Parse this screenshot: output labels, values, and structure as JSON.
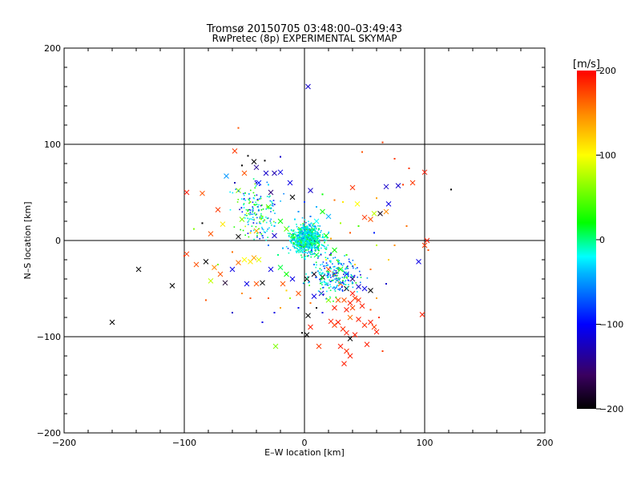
{
  "chart_data": {
    "type": "scatter",
    "title": "Tromsø 20150705 03:48:00–03:49:43",
    "subtitle": "RwPretec (8p) EXPERIMENTAL SKYMAP",
    "xlabel": "E–W location [km]",
    "ylabel": "N–S location [km]",
    "xlim": [
      -200,
      200
    ],
    "ylim": [
      -200,
      200
    ],
    "xticks": [
      -200,
      -100,
      0,
      100,
      200
    ],
    "yticks": [
      -200,
      -100,
      0,
      100,
      200
    ],
    "x_tick_labels": [
      "−200",
      "−100",
      "0",
      "100",
      "200"
    ],
    "y_tick_labels": [
      "−200",
      "−100",
      "0",
      "100",
      "200"
    ],
    "grid": true,
    "colorbar": {
      "label": "[m/s]",
      "range": [
        -200,
        200
      ],
      "ticks": [
        200,
        100,
        0,
        -100,
        -200
      ],
      "tick_labels": [
        "200",
        "100",
        "0",
        "−100",
        "−200"
      ],
      "colors": [
        "#000000",
        "#3a0060",
        "#0000ff",
        "#00b4ff",
        "#00ffff",
        "#00ff00",
        "#ffff00",
        "#ff8c00",
        "#ff0000"
      ]
    },
    "points": [
      {
        "x": 3,
        "y": 160,
        "v": -120,
        "m": "x"
      },
      {
        "x": -55,
        "y": 117,
        "v": 170,
        "m": "d"
      },
      {
        "x": -58,
        "y": 93,
        "v": 180,
        "m": "x"
      },
      {
        "x": -42,
        "y": 82,
        "v": -200,
        "m": "x"
      },
      {
        "x": -40,
        "y": 76,
        "v": -140,
        "m": "x"
      },
      {
        "x": -32,
        "y": 70,
        "v": -120,
        "m": "x"
      },
      {
        "x": -25,
        "y": 70,
        "v": -130,
        "m": "x"
      },
      {
        "x": -20,
        "y": 71,
        "v": -110,
        "m": "x"
      },
      {
        "x": -65,
        "y": 67,
        "v": -50,
        "m": "x"
      },
      {
        "x": -50,
        "y": 70,
        "v": 170,
        "m": "x"
      },
      {
        "x": -38,
        "y": 60,
        "v": -90,
        "m": "x"
      },
      {
        "x": -12,
        "y": 60,
        "v": -110,
        "m": "x"
      },
      {
        "x": -98,
        "y": 50,
        "v": 190,
        "m": "x"
      },
      {
        "x": -85,
        "y": 49,
        "v": 170,
        "m": "x"
      },
      {
        "x": -55,
        "y": 52,
        "v": 60,
        "m": "x"
      },
      {
        "x": -28,
        "y": 50,
        "v": -150,
        "m": "x"
      },
      {
        "x": -10,
        "y": 45,
        "v": -200,
        "m": "x"
      },
      {
        "x": 5,
        "y": 52,
        "v": -120,
        "m": "x"
      },
      {
        "x": 40,
        "y": 55,
        "v": 180,
        "m": "x"
      },
      {
        "x": 68,
        "y": 56,
        "v": -120,
        "m": "x"
      },
      {
        "x": 78,
        "y": 57,
        "v": -120,
        "m": "x"
      },
      {
        "x": 100,
        "y": 71,
        "v": 190,
        "m": "x"
      },
      {
        "x": 90,
        "y": 60,
        "v": 180,
        "m": "x"
      },
      {
        "x": 70,
        "y": 38,
        "v": -110,
        "m": "x"
      },
      {
        "x": 63,
        "y": 28,
        "v": -190,
        "m": "x"
      },
      {
        "x": 58,
        "y": 28,
        "v": 80,
        "m": "x"
      },
      {
        "x": 50,
        "y": 24,
        "v": 180,
        "m": "x"
      },
      {
        "x": 55,
        "y": 22,
        "v": 170,
        "m": "x"
      },
      {
        "x": 68,
        "y": 30,
        "v": 150,
        "m": "x"
      },
      {
        "x": 44,
        "y": 38,
        "v": 100,
        "m": "x"
      },
      {
        "x": -72,
        "y": 32,
        "v": 180,
        "m": "x"
      },
      {
        "x": -68,
        "y": 17,
        "v": 110,
        "m": "x"
      },
      {
        "x": -52,
        "y": 22,
        "v": 60,
        "m": "x"
      },
      {
        "x": -78,
        "y": 7,
        "v": 170,
        "m": "x"
      },
      {
        "x": -55,
        "y": 4,
        "v": -200,
        "m": "x"
      },
      {
        "x": -40,
        "y": 10,
        "v": 140,
        "m": "x"
      },
      {
        "x": -25,
        "y": 5,
        "v": -120,
        "m": "x"
      },
      {
        "x": -30,
        "y": 35,
        "v": 40,
        "m": "x"
      },
      {
        "x": -20,
        "y": 20,
        "v": 20,
        "m": "x"
      },
      {
        "x": 102,
        "y": 0,
        "v": 190,
        "m": "x"
      },
      {
        "x": 100,
        "y": -5,
        "v": 180,
        "m": "x"
      },
      {
        "x": 95,
        "y": -22,
        "v": -110,
        "m": "x"
      },
      {
        "x": 98,
        "y": -77,
        "v": 190,
        "m": "x"
      },
      {
        "x": -138,
        "y": -30,
        "v": -200,
        "m": "x"
      },
      {
        "x": -110,
        "y": -47,
        "v": -200,
        "m": "x"
      },
      {
        "x": -160,
        "y": -85,
        "v": -200,
        "m": "x"
      },
      {
        "x": -98,
        "y": -14,
        "v": 180,
        "m": "x"
      },
      {
        "x": -90,
        "y": -25,
        "v": 170,
        "m": "x"
      },
      {
        "x": -82,
        "y": -22,
        "v": -200,
        "m": "x"
      },
      {
        "x": -75,
        "y": -28,
        "v": 150,
        "m": "x"
      },
      {
        "x": -70,
        "y": -35,
        "v": 170,
        "m": "x"
      },
      {
        "x": -78,
        "y": -42,
        "v": 80,
        "m": "x"
      },
      {
        "x": -66,
        "y": -44,
        "v": -180,
        "m": "x"
      },
      {
        "x": -60,
        "y": -30,
        "v": -110,
        "m": "x"
      },
      {
        "x": -55,
        "y": -23,
        "v": 160,
        "m": "x"
      },
      {
        "x": -50,
        "y": -20,
        "v": 100,
        "m": "x"
      },
      {
        "x": -45,
        "y": -22,
        "v": 110,
        "m": "x"
      },
      {
        "x": -42,
        "y": -18,
        "v": 140,
        "m": "x"
      },
      {
        "x": -38,
        "y": -20,
        "v": 90,
        "m": "x"
      },
      {
        "x": -48,
        "y": -45,
        "v": -110,
        "m": "x"
      },
      {
        "x": -40,
        "y": -45,
        "v": 170,
        "m": "x"
      },
      {
        "x": -35,
        "y": -44,
        "v": -200,
        "m": "x"
      },
      {
        "x": -28,
        "y": -30,
        "v": -110,
        "m": "x"
      },
      {
        "x": -20,
        "y": -28,
        "v": 10,
        "m": "x"
      },
      {
        "x": -15,
        "y": -35,
        "v": 20,
        "m": "x"
      },
      {
        "x": -10,
        "y": -40,
        "v": -110,
        "m": "x"
      },
      {
        "x": -18,
        "y": -45,
        "v": 170,
        "m": "x"
      },
      {
        "x": -24,
        "y": -110,
        "v": 60,
        "m": "x"
      },
      {
        "x": 2,
        "y": -40,
        "v": -200,
        "m": "x"
      },
      {
        "x": 8,
        "y": -35,
        "v": -190,
        "m": "x"
      },
      {
        "x": 15,
        "y": -38,
        "v": -200,
        "m": "x"
      },
      {
        "x": 20,
        "y": -30,
        "v": 170,
        "m": "x"
      },
      {
        "x": 25,
        "y": -35,
        "v": 180,
        "m": "x"
      },
      {
        "x": 30,
        "y": -30,
        "v": 30,
        "m": "x"
      },
      {
        "x": 35,
        "y": -35,
        "v": -110,
        "m": "x"
      },
      {
        "x": 40,
        "y": -40,
        "v": -150,
        "m": "x"
      },
      {
        "x": 45,
        "y": -48,
        "v": -120,
        "m": "x"
      },
      {
        "x": 50,
        "y": -50,
        "v": -110,
        "m": "x"
      },
      {
        "x": 55,
        "y": -52,
        "v": -200,
        "m": "x"
      },
      {
        "x": 30,
        "y": -45,
        "v": 170,
        "m": "x"
      },
      {
        "x": 35,
        "y": -50,
        "v": -200,
        "m": "x"
      },
      {
        "x": 40,
        "y": -55,
        "v": 190,
        "m": "x"
      },
      {
        "x": 42,
        "y": -60,
        "v": 180,
        "m": "x"
      },
      {
        "x": 38,
        "y": -65,
        "v": 190,
        "m": "x"
      },
      {
        "x": 33,
        "y": -62,
        "v": 170,
        "m": "x"
      },
      {
        "x": 45,
        "y": -62,
        "v": 185,
        "m": "x"
      },
      {
        "x": 48,
        "y": -68,
        "v": 190,
        "m": "x"
      },
      {
        "x": 40,
        "y": -70,
        "v": 175,
        "m": "x"
      },
      {
        "x": 35,
        "y": -72,
        "v": 190,
        "m": "x"
      },
      {
        "x": 28,
        "y": -62,
        "v": 170,
        "m": "x"
      },
      {
        "x": 25,
        "y": -70,
        "v": 190,
        "m": "x"
      },
      {
        "x": 38,
        "y": -80,
        "v": 160,
        "m": "x"
      },
      {
        "x": 45,
        "y": -82,
        "v": 190,
        "m": "x"
      },
      {
        "x": 50,
        "y": -88,
        "v": 185,
        "m": "x"
      },
      {
        "x": 55,
        "y": -85,
        "v": 190,
        "m": "x"
      },
      {
        "x": 58,
        "y": -90,
        "v": 180,
        "m": "x"
      },
      {
        "x": 60,
        "y": -95,
        "v": 190,
        "m": "x"
      },
      {
        "x": 22,
        "y": -84,
        "v": 190,
        "m": "x"
      },
      {
        "x": 25,
        "y": -88,
        "v": 180,
        "m": "x"
      },
      {
        "x": 28,
        "y": -85,
        "v": 190,
        "m": "x"
      },
      {
        "x": 32,
        "y": -92,
        "v": 185,
        "m": "x"
      },
      {
        "x": 35,
        "y": -96,
        "v": 190,
        "m": "x"
      },
      {
        "x": 38,
        "y": -102,
        "v": -200,
        "m": "x"
      },
      {
        "x": 42,
        "y": -98,
        "v": 190,
        "m": "x"
      },
      {
        "x": 30,
        "y": -110,
        "v": 190,
        "m": "x"
      },
      {
        "x": 35,
        "y": -115,
        "v": 185,
        "m": "x"
      },
      {
        "x": 38,
        "y": -120,
        "v": 190,
        "m": "x"
      },
      {
        "x": 33,
        "y": -128,
        "v": 190,
        "m": "x"
      },
      {
        "x": 52,
        "y": -108,
        "v": 190,
        "m": "x"
      },
      {
        "x": 12,
        "y": -110,
        "v": 180,
        "m": "x"
      },
      {
        "x": 5,
        "y": -90,
        "v": 190,
        "m": "x"
      },
      {
        "x": 2,
        "y": -98,
        "v": -200,
        "m": "x"
      },
      {
        "x": 3,
        "y": -78,
        "v": -200,
        "m": "x"
      },
      {
        "x": 8,
        "y": -58,
        "v": -110,
        "m": "x"
      },
      {
        "x": 14,
        "y": -55,
        "v": -120,
        "m": "x"
      },
      {
        "x": -5,
        "y": -55,
        "v": 170,
        "m": "x"
      },
      {
        "x": 20,
        "y": -62,
        "v": 60,
        "m": "x"
      },
      {
        "x": 15,
        "y": 30,
        "v": 20,
        "m": "x"
      },
      {
        "x": 20,
        "y": 25,
        "v": -40,
        "m": "x"
      },
      {
        "x": 10,
        "y": 20,
        "v": -20,
        "m": "x"
      },
      {
        "x": 5,
        "y": 10,
        "v": 30,
        "m": "x"
      },
      {
        "x": 18,
        "y": 5,
        "v": 20,
        "m": "x"
      },
      {
        "x": -10,
        "y": 5,
        "v": 40,
        "m": "x"
      },
      {
        "x": -5,
        "y": -10,
        "v": -30,
        "m": "x"
      },
      {
        "x": 10,
        "y": -15,
        "v": 10,
        "m": "x"
      },
      {
        "x": 25,
        "y": -10,
        "v": 20,
        "m": "x"
      },
      {
        "x": -2,
        "y": 2,
        "v": 80,
        "m": "x"
      },
      {
        "x": 5,
        "y": -5,
        "v": 60,
        "m": "x"
      },
      {
        "x": -15,
        "y": 12,
        "v": 50,
        "m": "x"
      },
      {
        "x": 122,
        "y": 53,
        "v": -200,
        "m": "d"
      },
      {
        "x": 103,
        "y": -10,
        "v": 170,
        "m": "d"
      },
      {
        "x": -60,
        "y": -75,
        "v": -120,
        "m": "d"
      },
      {
        "x": -35,
        "y": -85,
        "v": -110,
        "m": "d"
      },
      {
        "x": -2,
        "y": -96,
        "v": -200,
        "m": "d"
      },
      {
        "x": 65,
        "y": -115,
        "v": 180,
        "m": "d"
      },
      {
        "x": 82,
        "y": 58,
        "v": 180,
        "m": "d"
      },
      {
        "x": 87,
        "y": 75,
        "v": 180,
        "m": "d"
      },
      {
        "x": 65,
        "y": 102,
        "v": 180,
        "m": "d"
      },
      {
        "x": 48,
        "y": 92,
        "v": 170,
        "m": "d"
      },
      {
        "x": 75,
        "y": 85,
        "v": 180,
        "m": "d"
      },
      {
        "x": -47,
        "y": 88,
        "v": -200,
        "m": "d"
      },
      {
        "x": -33,
        "y": 83,
        "v": -200,
        "m": "d"
      },
      {
        "x": -20,
        "y": 87,
        "v": -120,
        "m": "d"
      },
      {
        "x": -52,
        "y": 78,
        "v": -200,
        "m": "d"
      },
      {
        "x": -58,
        "y": 60,
        "v": -130,
        "m": "d"
      },
      {
        "x": -45,
        "y": 40,
        "v": 100,
        "m": "d"
      },
      {
        "x": 15,
        "y": 48,
        "v": 20,
        "m": "d"
      },
      {
        "x": 25,
        "y": 42,
        "v": 160,
        "m": "d"
      },
      {
        "x": 32,
        "y": 40,
        "v": 110,
        "m": "d"
      },
      {
        "x": 60,
        "y": 44,
        "v": 140,
        "m": "d"
      },
      {
        "x": -85,
        "y": 18,
        "v": -200,
        "m": "d"
      },
      {
        "x": -92,
        "y": 12,
        "v": 60,
        "m": "d"
      },
      {
        "x": -100,
        "y": -16,
        "v": 180,
        "m": "d"
      },
      {
        "x": -82,
        "y": -62,
        "v": 170,
        "m": "d"
      },
      {
        "x": -72,
        "y": -25,
        "v": 60,
        "m": "d"
      },
      {
        "x": -30,
        "y": -60,
        "v": 170,
        "m": "d"
      },
      {
        "x": -20,
        "y": -70,
        "v": 140,
        "m": "d"
      },
      {
        "x": -25,
        "y": -75,
        "v": -110,
        "m": "d"
      },
      {
        "x": -15,
        "y": -52,
        "v": 120,
        "m": "d"
      },
      {
        "x": 68,
        "y": -45,
        "v": -120,
        "m": "d"
      },
      {
        "x": 70,
        "y": -20,
        "v": 120,
        "m": "d"
      },
      {
        "x": 75,
        "y": -5,
        "v": 150,
        "m": "d"
      },
      {
        "x": 85,
        "y": 15,
        "v": 160,
        "m": "d"
      },
      {
        "x": 60,
        "y": -5,
        "v": 80,
        "m": "d"
      },
      {
        "x": 58,
        "y": 8,
        "v": -90,
        "m": "d"
      },
      {
        "x": 45,
        "y": 15,
        "v": 40,
        "m": "d"
      },
      {
        "x": 38,
        "y": 8,
        "v": 170,
        "m": "d"
      },
      {
        "x": 30,
        "y": 18,
        "v": 70,
        "m": "d"
      },
      {
        "x": 22,
        "y": 2,
        "v": 140,
        "m": "d"
      },
      {
        "x": 18,
        "y": -20,
        "v": 100,
        "m": "d"
      },
      {
        "x": 28,
        "y": -22,
        "v": 50,
        "m": "d"
      },
      {
        "x": 42,
        "y": -25,
        "v": 120,
        "m": "d"
      },
      {
        "x": 55,
        "y": -30,
        "v": 160,
        "m": "d"
      },
      {
        "x": 60,
        "y": -60,
        "v": 140,
        "m": "d"
      },
      {
        "x": 55,
        "y": -72,
        "v": 170,
        "m": "d"
      },
      {
        "x": 62,
        "y": -80,
        "v": 180,
        "m": "d"
      },
      {
        "x": 10,
        "y": -70,
        "v": -200,
        "m": "d"
      },
      {
        "x": 15,
        "y": -75,
        "v": -110,
        "m": "d"
      },
      {
        "x": 5,
        "y": -65,
        "v": 160,
        "m": "d"
      },
      {
        "x": -5,
        "y": -70,
        "v": -110,
        "m": "d"
      },
      {
        "x": -12,
        "y": -60,
        "v": 70,
        "m": "d"
      },
      {
        "x": -40,
        "y": 60,
        "v": -120,
        "m": "d"
      },
      {
        "x": -30,
        "y": 58,
        "v": -30,
        "m": "d"
      },
      {
        "x": -35,
        "y": 25,
        "v": 60,
        "m": "d"
      },
      {
        "x": -25,
        "y": 15,
        "v": -40,
        "m": "d"
      },
      {
        "x": -45,
        "y": 8,
        "v": 110,
        "m": "d"
      },
      {
        "x": -60,
        "y": -12,
        "v": 160,
        "m": "d"
      },
      {
        "x": -52,
        "y": -55,
        "v": 150,
        "m": "d"
      },
      {
        "x": -45,
        "y": -60,
        "v": 170,
        "m": "d"
      },
      {
        "x": 10,
        "y": 35,
        "v": -40,
        "m": "d"
      },
      {
        "x": 5,
        "y": 25,
        "v": -60,
        "m": "d"
      },
      {
        "x": -5,
        "y": 30,
        "v": -50,
        "m": "d"
      },
      {
        "x": 0,
        "y": 40,
        "v": -80,
        "m": "d"
      },
      {
        "x": -8,
        "y": 22,
        "v": -30,
        "m": "d"
      },
      {
        "x": 12,
        "y": 12,
        "v": 10,
        "m": "d"
      },
      {
        "x": -12,
        "y": 0,
        "v": -20,
        "m": "d"
      },
      {
        "x": -18,
        "y": -8,
        "v": -40,
        "m": "d"
      },
      {
        "x": 8,
        "y": -25,
        "v": -60,
        "m": "d"
      },
      {
        "x": 0,
        "y": -18,
        "v": -30,
        "m": "d"
      },
      {
        "x": -22,
        "y": -15,
        "v": 0,
        "m": "d"
      },
      {
        "x": 15,
        "y": -5,
        "v": -10,
        "m": "d"
      },
      {
        "x": 22,
        "y": -15,
        "v": 30,
        "m": "d"
      },
      {
        "x": 35,
        "y": -15,
        "v": 40,
        "m": "d"
      },
      {
        "x": -30,
        "y": -5,
        "v": -60,
        "m": "d"
      },
      {
        "x": -35,
        "y": 5,
        "v": -70,
        "m": "d"
      }
    ]
  }
}
